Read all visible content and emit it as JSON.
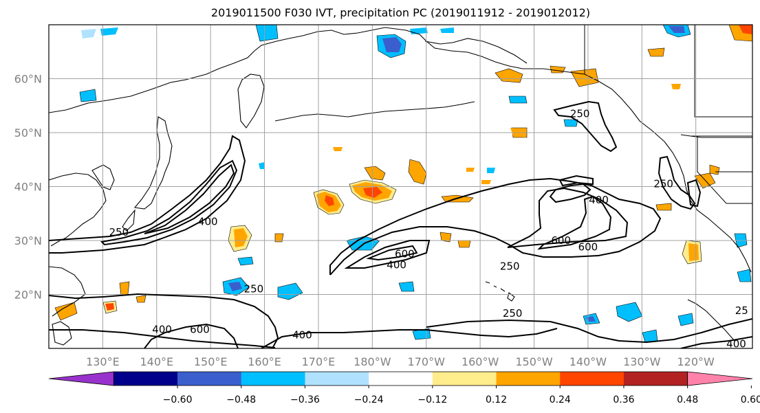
{
  "title": "2019011500 F030 IVT, precipitation PC (2019011912 - 2019012012)",
  "lat_labels": [
    {
      "text": "60°N",
      "lat": 60
    },
    {
      "text": "50°N",
      "lat": 50
    },
    {
      "text": "40°N",
      "lat": 40
    },
    {
      "text": "30°N",
      "lat": 30
    },
    {
      "text": "20°N",
      "lat": 20
    }
  ],
  "lon_labels": [
    {
      "text": "130°E",
      "lon": 130
    },
    {
      "text": "140°E",
      "lon": 140
    },
    {
      "text": "150°E",
      "lon": 150
    },
    {
      "text": "160°E",
      "lon": 160
    },
    {
      "text": "170°E",
      "lon": 170
    },
    {
      "text": "180°W",
      "lon": 180
    },
    {
      "text": "170°W",
      "lon": 190
    },
    {
      "text": "160°W",
      "lon": 200
    },
    {
      "text": "150°W",
      "lon": 210
    },
    {
      "text": "140°W",
      "lon": 220
    },
    {
      "text": "130°W",
      "lon": 230
    },
    {
      "text": "120°W",
      "lon": 240
    }
  ],
  "extent": {
    "lon_min": 120,
    "lon_max": 250.5,
    "lat_min": 10,
    "lat_max": 70
  },
  "colorbar": {
    "ticks": [
      "−0.60",
      "−0.48",
      "−0.36",
      "−0.24",
      "−0.12",
      "0.12",
      "0.24",
      "0.36",
      "0.48",
      "0.60"
    ],
    "colors": [
      "#9932cc",
      "#00008b",
      "#3a5fcd",
      "#00bfff",
      "#b0e2ff",
      "#ffffff",
      "#ffec8b",
      "#ffa500",
      "#ff4500",
      "#b22222",
      "#ff82ab"
    ]
  },
  "ivt_labels": [
    {
      "text": "250",
      "lon": 133,
      "lat": 31.5
    },
    {
      "text": "400",
      "lon": 149.5,
      "lat": 33.5
    },
    {
      "text": "250",
      "lon": 158,
      "lat": 21
    },
    {
      "text": "400",
      "lon": 141,
      "lat": 13.5
    },
    {
      "text": "600",
      "lon": 148,
      "lat": 13.5
    },
    {
      "text": "400",
      "lon": 167,
      "lat": 12.5
    },
    {
      "text": "600",
      "lon": 186,
      "lat": 27.5
    },
    {
      "text": "400",
      "lon": 184.5,
      "lat": 25.5
    },
    {
      "text": "250",
      "lon": 205.5,
      "lat": 25.2
    },
    {
      "text": "250",
      "lon": 206,
      "lat": 16.5
    },
    {
      "text": "400",
      "lon": 222,
      "lat": 37.5
    },
    {
      "text": "600",
      "lon": 215,
      "lat": 30
    },
    {
      "text": "600",
      "lon": 220,
      "lat": 28.8
    },
    {
      "text": "250",
      "lon": 218.5,
      "lat": 53.5
    },
    {
      "text": "250",
      "lon": 234,
      "lat": 40.5
    },
    {
      "text": "25",
      "lon": 248.5,
      "lat": 17
    },
    {
      "text": "400",
      "lon": 247.5,
      "lat": 10.8
    }
  ]
}
